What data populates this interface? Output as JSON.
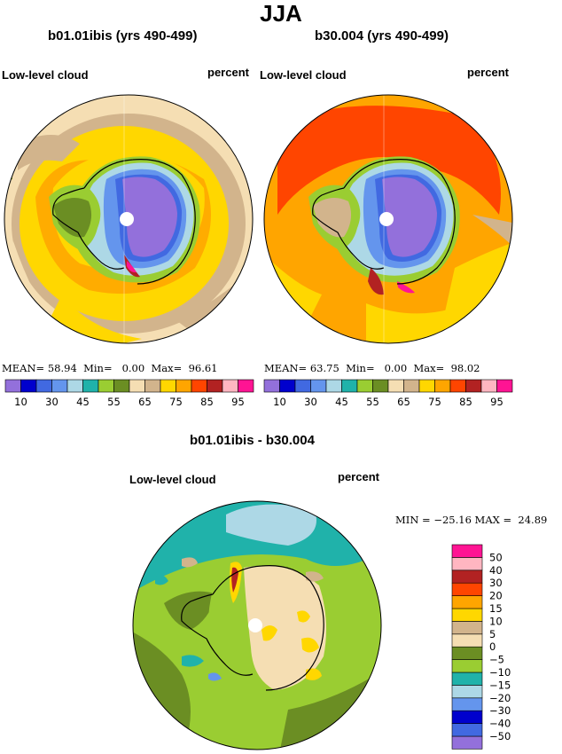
{
  "season": "JJA",
  "panels": [
    {
      "title": "b01.01ibis (yrs 490-499)",
      "variable": "Low-level cloud",
      "units": "percent",
      "stats": {
        "mean_label": "MEAN=",
        "mean": "58.94",
        "min_label": "Min=",
        "min": "0.00",
        "max_label": "Max=",
        "max": "96.61"
      }
    },
    {
      "title": "b30.004 (yrs 490-499)",
      "variable": "Low-level cloud",
      "units": "percent",
      "stats": {
        "mean_label": "MEAN=",
        "mean": "63.75",
        "min_label": "Min=",
        "min": "0.00",
        "max_label": "Max=",
        "max": "98.02"
      }
    }
  ],
  "diff_panel": {
    "title": "b01.01ibis - b30.004",
    "variable": "Low-level cloud",
    "units": "percent",
    "stats": {
      "min_label": "MIN =",
      "min": "−25.16",
      "max_label": "MAX =",
      "max": "24.89"
    }
  },
  "colorbar_horizontal": {
    "colors": [
      "#9370db",
      "#0000cd",
      "#4169e1",
      "#6495ed",
      "#add8e6",
      "#20b2aa",
      "#9acd32",
      "#6b8e23",
      "#f5deb3",
      "#d2b48c",
      "#ffd700",
      "#ffa500",
      "#ff4500",
      "#b22222",
      "#ffb6c1",
      "#ff1493"
    ],
    "labels": [
      "10",
      "30",
      "45",
      "55",
      "65",
      "75",
      "85",
      "95"
    ]
  },
  "colorbar_vertical": {
    "colors": [
      "#9370db",
      "#4169e1",
      "#0000cd",
      "#6495ed",
      "#add8e6",
      "#20b2aa",
      "#9acd32",
      "#6b8e23",
      "#f5deb3",
      "#d2b48c",
      "#ffd700",
      "#ffa500",
      "#ff4500",
      "#b22222",
      "#ffb6c1",
      "#ff1493"
    ],
    "labels": [
      "−50",
      "−40",
      "−30",
      "−20",
      "−15",
      "−10",
      "−5",
      "0",
      "5",
      "10",
      "15",
      "20",
      "30",
      "40",
      "50"
    ]
  }
}
